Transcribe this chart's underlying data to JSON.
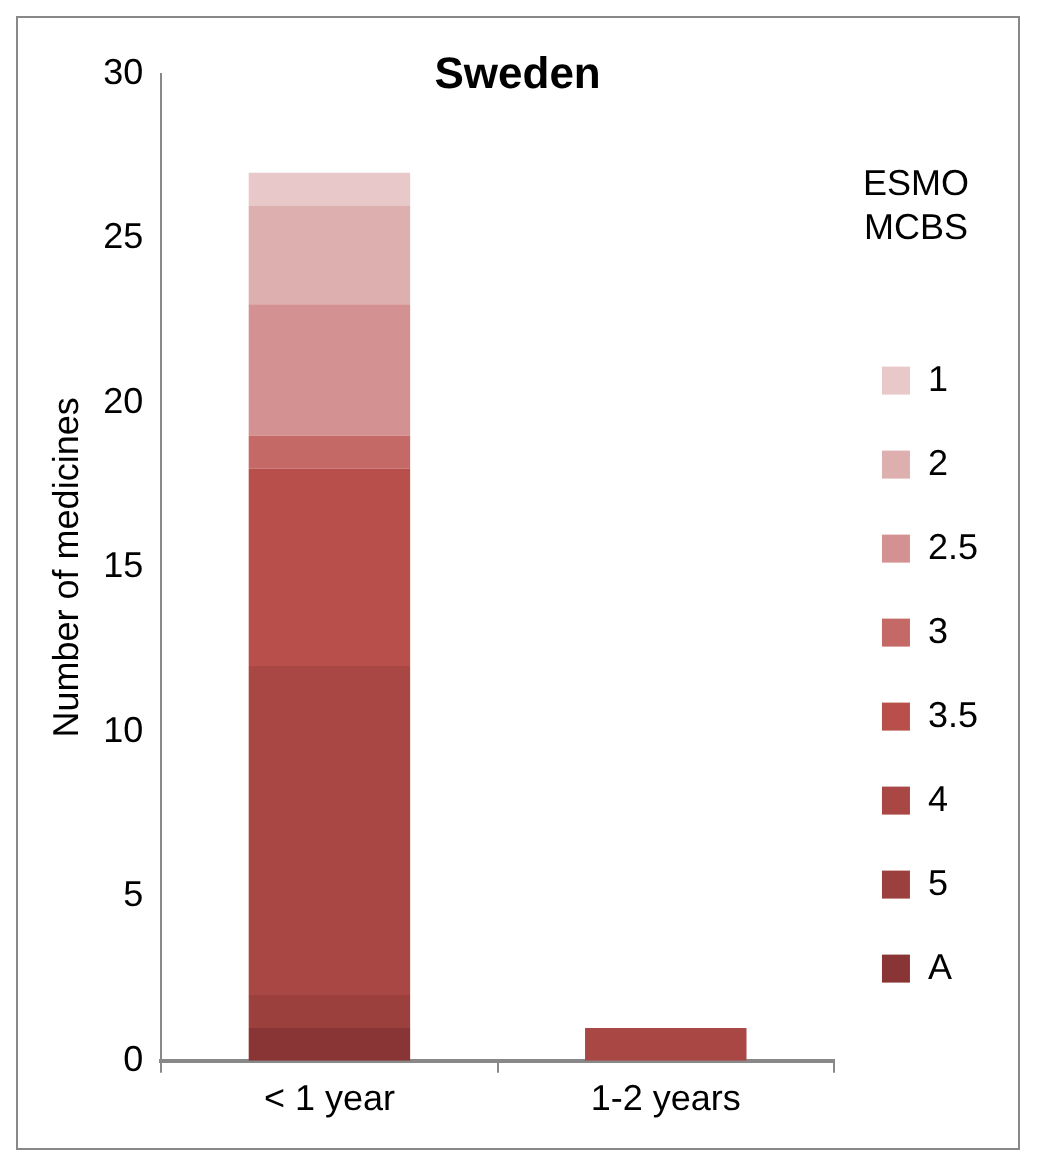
{
  "chart_data": {
    "type": "bar",
    "title": "Sweden",
    "ylabel": "Number of medicines",
    "legend_title": "ESMO MCBS",
    "categories": [
      "< 1 year",
      "1-2 years"
    ],
    "stacked": true,
    "series": [
      {
        "name": "A",
        "color": "#893535",
        "values": [
          1,
          null
        ]
      },
      {
        "name": "5",
        "color": "#9c403d",
        "values": [
          1,
          null
        ]
      },
      {
        "name": "4",
        "color": "#a94744",
        "values": [
          10,
          1
        ]
      },
      {
        "name": "3.5",
        "color": "#b84f4b",
        "values": [
          6,
          null
        ]
      },
      {
        "name": "3",
        "color": "#c46966",
        "values": [
          1,
          null
        ]
      },
      {
        "name": "2.5",
        "color": "#d39291",
        "values": [
          4,
          null
        ]
      },
      {
        "name": "2",
        "color": "#ddafaf",
        "values": [
          3,
          null
        ]
      },
      {
        "name": "1",
        "color": "#e8c8c8",
        "values": [
          1,
          null
        ]
      }
    ],
    "ylim": [
      0,
      30
    ],
    "yticks": [
      0,
      5,
      10,
      15,
      20,
      25,
      30
    ],
    "grid": false,
    "legend": "right"
  }
}
